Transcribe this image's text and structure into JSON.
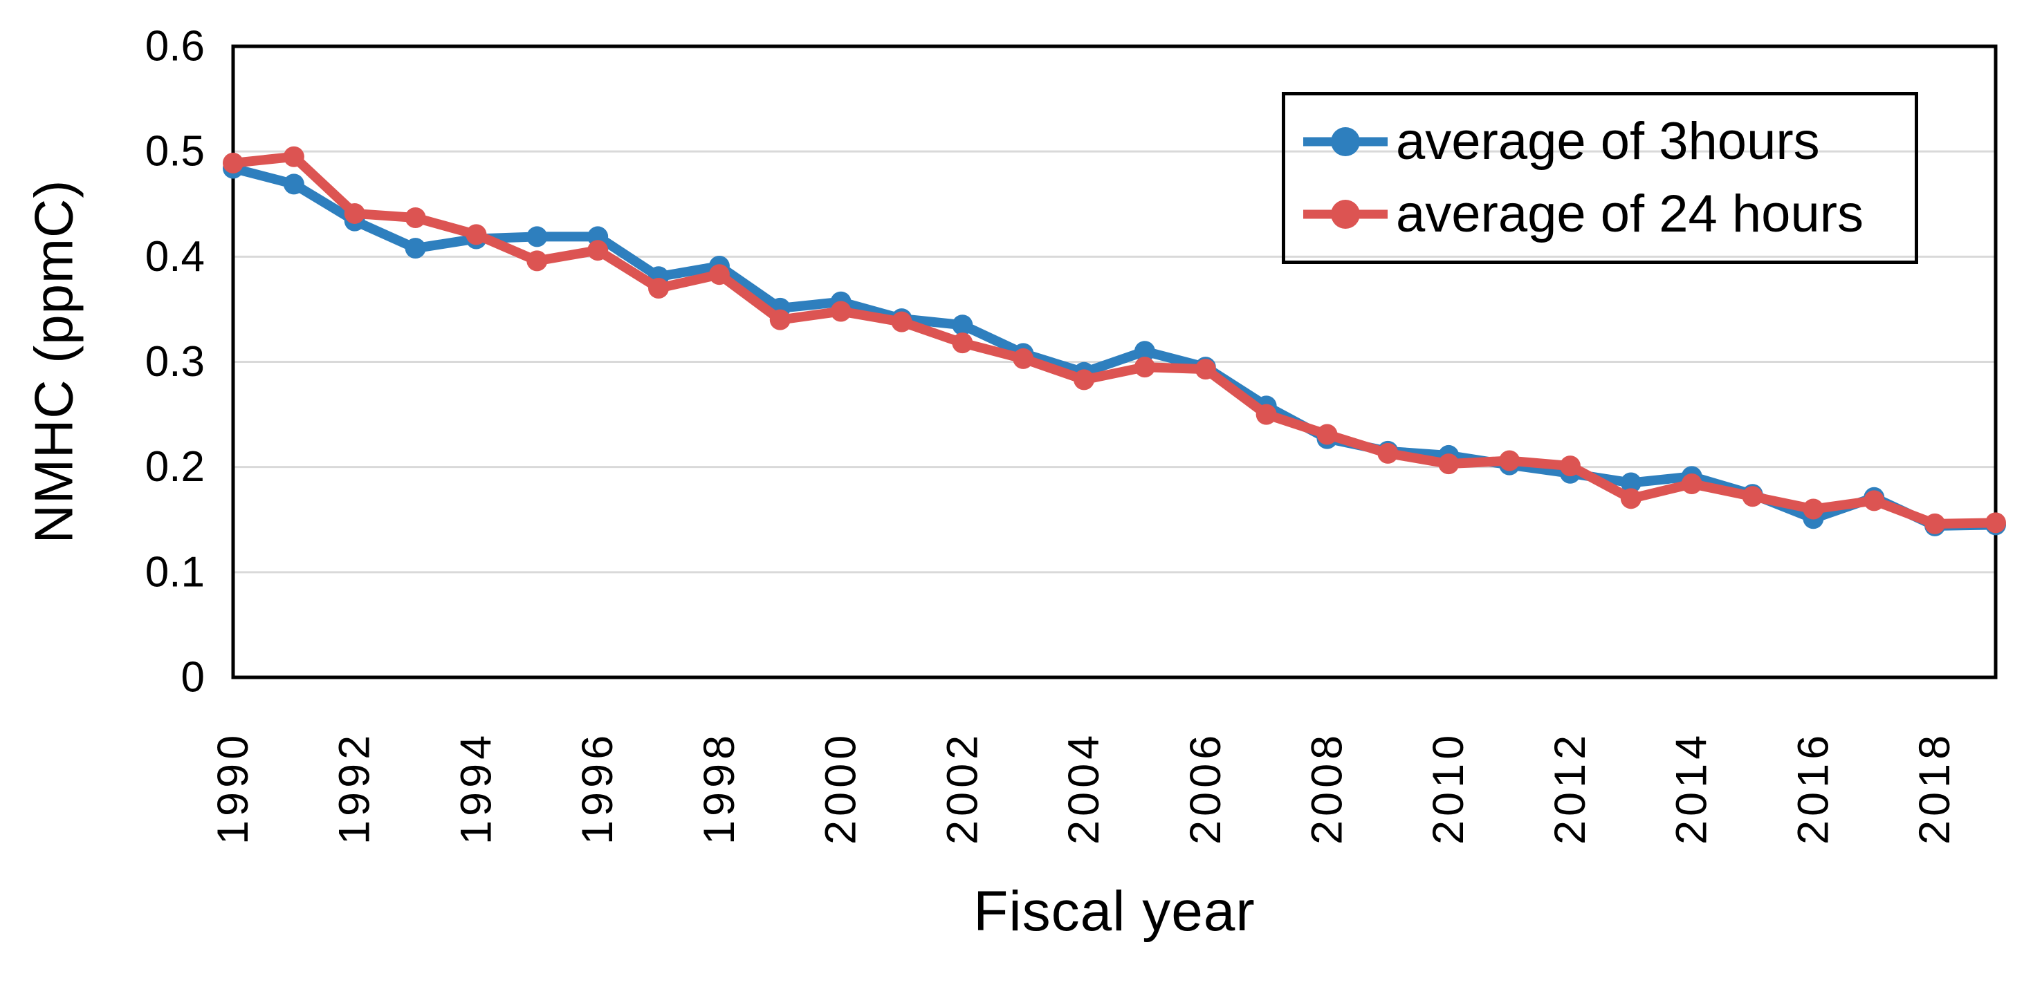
{
  "chart_data": {
    "type": "line",
    "title": "",
    "xlabel": "Fiscal year",
    "ylabel": "NMHC (ppmC)",
    "x": [
      1990,
      1991,
      1992,
      1993,
      1994,
      1995,
      1996,
      1997,
      1998,
      1999,
      2000,
      2001,
      2002,
      2003,
      2004,
      2005,
      2006,
      2007,
      2008,
      2009,
      2010,
      2011,
      2012,
      2013,
      2014,
      2015,
      2016,
      2017,
      2018,
      2019
    ],
    "series": [
      {
        "name": "average of 3hours",
        "color": "#2E7FBE",
        "values": [
          0.484,
          0.469,
          0.434,
          0.408,
          0.417,
          0.419,
          0.419,
          0.381,
          0.391,
          0.351,
          0.357,
          0.341,
          0.335,
          0.308,
          0.29,
          0.31,
          0.295,
          0.258,
          0.227,
          0.215,
          0.211,
          0.202,
          0.194,
          0.185,
          0.191,
          0.174,
          0.151,
          0.171,
          0.144,
          0.145
        ]
      },
      {
        "name": "average of 24 hours",
        "color": "#DC5452",
        "values": [
          0.489,
          0.495,
          0.441,
          0.437,
          0.421,
          0.396,
          0.406,
          0.37,
          0.383,
          0.34,
          0.348,
          0.338,
          0.318,
          0.303,
          0.283,
          0.295,
          0.293,
          0.25,
          0.231,
          0.213,
          0.203,
          0.206,
          0.201,
          0.17,
          0.184,
          0.172,
          0.16,
          0.168,
          0.146,
          0.147
        ]
      }
    ],
    "ylim": [
      0,
      0.6
    ],
    "y_ticks": [
      0,
      0.1,
      0.2,
      0.3,
      0.4,
      0.5,
      0.6
    ],
    "y_tick_labels": [
      "0",
      "0.1",
      "0.2",
      "0.3",
      "0.4",
      "0.5",
      "0.6"
    ],
    "x_tick_years": [
      1990,
      1992,
      1994,
      1996,
      1998,
      2000,
      2002,
      2004,
      2006,
      2008,
      2010,
      2012,
      2014,
      2016,
      2018
    ],
    "x_tick_labels": [
      "1990",
      "1992",
      "1994",
      "1996",
      "1998",
      "2000",
      "2002",
      "2004",
      "2006",
      "2008",
      "2010",
      "2012",
      "2014",
      "2016",
      "2018"
    ],
    "grid": "horizontal",
    "grid_color": "#D9D9D9",
    "frame_color": "#000000",
    "background_color": "#FFFFFF",
    "legend_position": "top-right-inside-box"
  }
}
